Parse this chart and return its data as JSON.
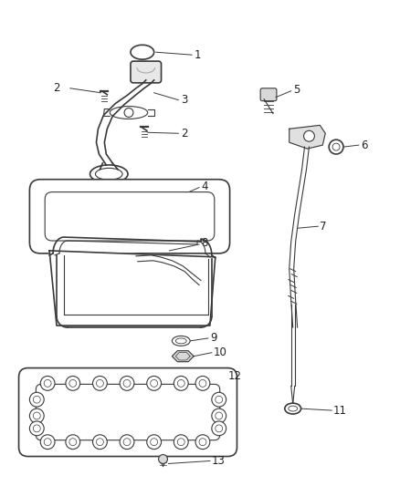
{
  "background_color": "#ffffff",
  "fig_width": 4.38,
  "fig_height": 5.33,
  "dpi": 100,
  "line_color": "#3a3a3a",
  "label_color": "#222222"
}
